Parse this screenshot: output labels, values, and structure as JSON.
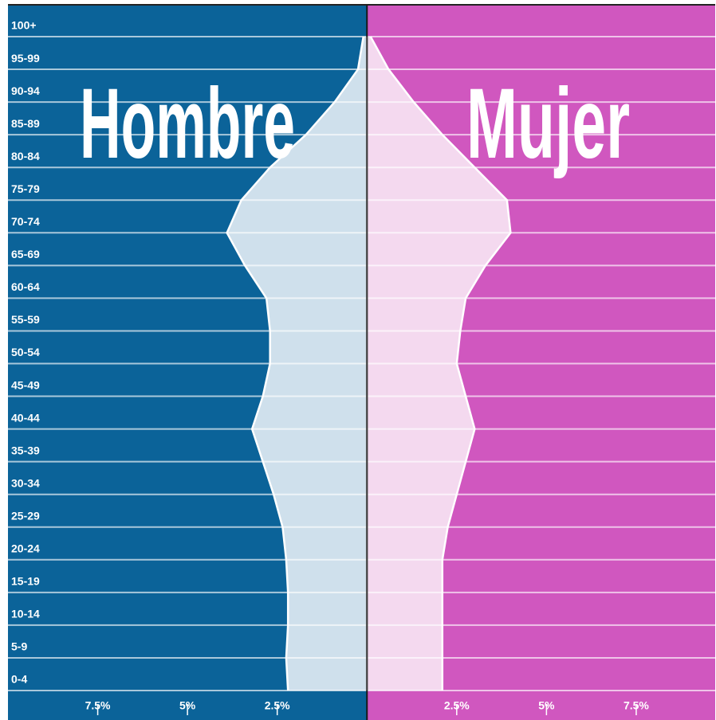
{
  "chart_data": {
    "type": "pyramid",
    "categories": [
      "0-4",
      "5-9",
      "10-14",
      "15-19",
      "20-24",
      "25-29",
      "30-34",
      "35-39",
      "40-44",
      "45-49",
      "50-54",
      "55-59",
      "60-64",
      "65-69",
      "70-74",
      "75-79",
      "80-84",
      "85-89",
      "90-94",
      "95-99",
      "100+"
    ],
    "series": [
      {
        "name": "Hombre",
        "side": "left",
        "color": "#cfe0ec",
        "panel_color": "#0b6399",
        "values": [
          2.2,
          2.25,
          2.2,
          2.2,
          2.25,
          2.35,
          2.6,
          2.9,
          3.2,
          2.9,
          2.7,
          2.7,
          2.8,
          3.4,
          3.9,
          3.5,
          2.7,
          1.7,
          0.9,
          0.25,
          0.1
        ]
      },
      {
        "name": "Mujer",
        "side": "right",
        "color": "#f4d9ef",
        "panel_color": "#d057bf",
        "values": [
          2.1,
          2.1,
          2.1,
          2.1,
          2.1,
          2.25,
          2.5,
          2.75,
          3.0,
          2.75,
          2.5,
          2.6,
          2.75,
          3.3,
          4.0,
          3.9,
          3.0,
          2.1,
          1.3,
          0.6,
          0.1
        ]
      }
    ],
    "xlim": [
      -10,
      9.7
    ],
    "xticks": [
      {
        "value": -7.5,
        "label": "7.5%"
      },
      {
        "value": -5,
        "label": "5%"
      },
      {
        "value": -2.5,
        "label": "2.5%"
      },
      {
        "value": 2.5,
        "label": "2.5%"
      },
      {
        "value": 5,
        "label": "5%"
      },
      {
        "value": 7.5,
        "label": "7.5%"
      }
    ]
  }
}
